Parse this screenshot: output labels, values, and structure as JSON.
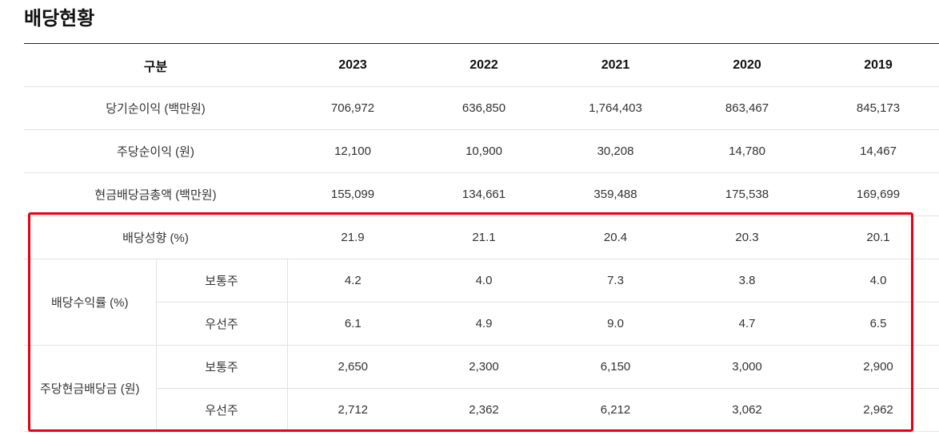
{
  "title": "배당현황",
  "header": {
    "category": "구분",
    "years": [
      "2023",
      "2022",
      "2021",
      "2020",
      "2019"
    ]
  },
  "rows": [
    {
      "label": "당기순이익 (백만원)",
      "values": [
        "706,972",
        "636,850",
        "1,764,403",
        "863,467",
        "845,173"
      ]
    },
    {
      "label": "주당순이익 (원)",
      "values": [
        "12,100",
        "10,900",
        "30,208",
        "14,780",
        "14,467"
      ]
    },
    {
      "label": "현금배당금총액 (백만원)",
      "values": [
        "155,099",
        "134,661",
        "359,488",
        "175,538",
        "169,699"
      ]
    },
    {
      "label": "배당성향 (%)",
      "values": [
        "21.9",
        "21.1",
        "20.4",
        "20.3",
        "20.1"
      ]
    }
  ],
  "groups": [
    {
      "label": "배당수익률 (%)",
      "subrows": [
        {
          "label": "보통주",
          "values": [
            "4.2",
            "4.0",
            "7.3",
            "3.8",
            "4.0"
          ]
        },
        {
          "label": "우선주",
          "values": [
            "6.1",
            "4.9",
            "9.0",
            "4.7",
            "6.5"
          ]
        }
      ]
    },
    {
      "label": "주당현금배당금 (원)",
      "subrows": [
        {
          "label": "보통주",
          "values": [
            "2,650",
            "2,300",
            "6,150",
            "3,000",
            "2,900"
          ]
        },
        {
          "label": "우선주",
          "values": [
            "2,712",
            "2,362",
            "6,212",
            "3,062",
            "2,962"
          ]
        }
      ]
    }
  ],
  "highlight_color": "#e60012"
}
